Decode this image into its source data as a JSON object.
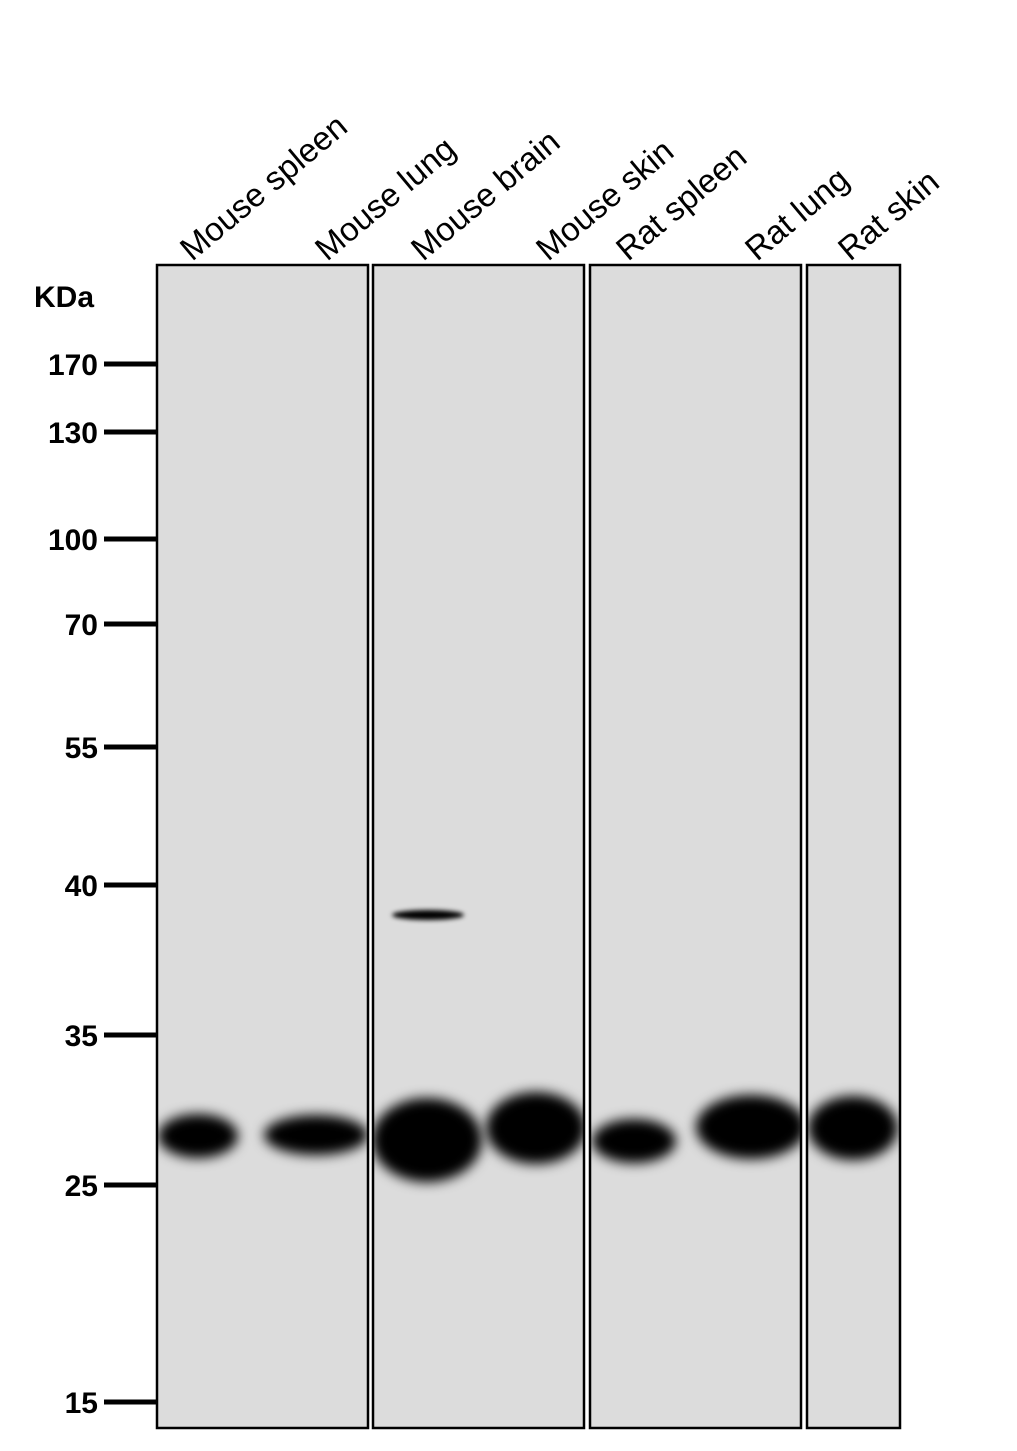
{
  "unit_label": "KDa",
  "markers": [
    "170",
    "130",
    "100",
    "70",
    "55",
    "40",
    "35",
    "25",
    "15"
  ],
  "lanes": [
    "Mouse spleen",
    "Mouse lung",
    "Mouse brain",
    "Mouse skin",
    "Rat spleen",
    "Rat lung",
    "Rat skin"
  ]
}
